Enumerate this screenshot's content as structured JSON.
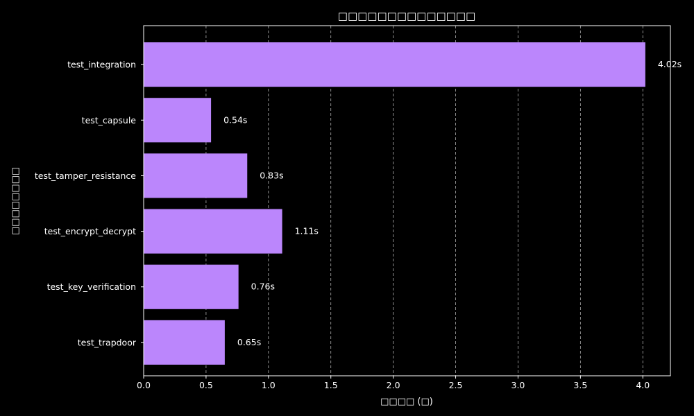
{
  "chart_data": {
    "type": "bar",
    "orientation": "horizontal",
    "title": "□□□□□□□□□□□□□□",
    "xlabel": "□□□□ (□)",
    "ylabel": "□□□□□□□□",
    "categories": [
      "test_integration",
      "test_capsule",
      "test_tamper_resistance",
      "test_encrypt_decrypt",
      "test_key_verification",
      "test_trapdoor"
    ],
    "values": [
      4.02,
      0.54,
      0.83,
      1.11,
      0.76,
      0.65
    ],
    "data_labels": [
      "4.02s",
      "0.54s",
      "0.83s",
      "1.11s",
      "0.76s",
      "0.65s"
    ],
    "xticks": [
      0.0,
      0.5,
      1.0,
      1.5,
      2.0,
      2.5,
      3.0,
      3.5,
      4.0
    ],
    "xtick_labels": [
      "0.0",
      "0.5",
      "1.0",
      "1.5",
      "2.0",
      "2.5",
      "3.0",
      "3.5",
      "4.0"
    ],
    "xlim": [
      0,
      4.221
    ],
    "grid": "x-dashed",
    "colors": {
      "background": "#000000",
      "bar": "#bb86fc",
      "text": "#ffffff",
      "grid": "#b0b0b0",
      "axis": "#ffffff"
    }
  }
}
